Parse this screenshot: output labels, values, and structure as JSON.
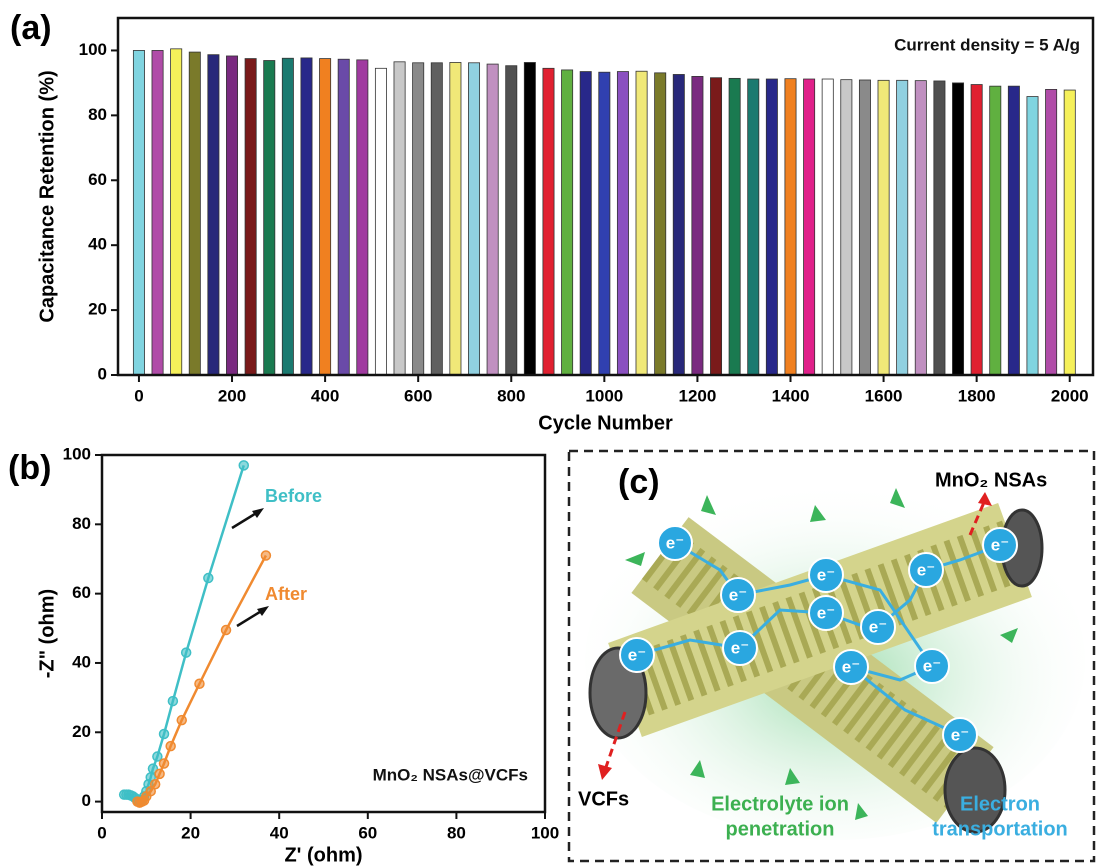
{
  "chart_data": [
    {
      "type": "bar",
      "panel_label": "(a)",
      "xlabel": "Cycle Number",
      "ylabel": "Capacitance Retention (%)",
      "annotation": "Current density = 5 A/g",
      "x": [
        0,
        40,
        80,
        120,
        160,
        200,
        240,
        280,
        320,
        360,
        400,
        440,
        480,
        520,
        560,
        600,
        640,
        680,
        720,
        760,
        800,
        840,
        880,
        920,
        960,
        1000,
        1040,
        1080,
        1120,
        1160,
        1200,
        1240,
        1280,
        1320,
        1360,
        1400,
        1440,
        1480,
        1520,
        1560,
        1600,
        1640,
        1680,
        1720,
        1760,
        1800,
        1840,
        1880,
        1920,
        1960,
        2000
      ],
      "values": [
        100,
        100,
        100.5,
        99.5,
        98.7,
        98.3,
        97.5,
        96.9,
        97.6,
        97.7,
        97.5,
        97.3,
        97.1,
        94.5,
        96.5,
        96.2,
        96.2,
        96.3,
        96.2,
        95.8,
        95.3,
        96.3,
        94.5,
        94.0,
        93.5,
        93.3,
        93.5,
        93.6,
        93.1,
        92.6,
        92.0,
        91.6,
        91.4,
        91.2,
        91.2,
        91.3,
        91.2,
        91.2,
        91.0,
        90.9,
        90.8,
        90.8,
        90.7,
        90.6,
        90.0,
        89.5,
        89.0,
        89.0,
        85.8,
        88.0,
        87.8
      ],
      "colors": [
        "#80d4e0",
        "#b04ca8",
        "#f5f05a",
        "#7a7a2a",
        "#28287a",
        "#7a2a80",
        "#7a1a1a",
        "#1a7a50",
        "#1a7a70",
        "#28288a",
        "#f08020",
        "#6a4aa8",
        "#a03aa0",
        "#ffffff",
        "#c8c8c8",
        "#8a8a8a",
        "#606060",
        "#f0e878",
        "#90d0e0",
        "#c090c0",
        "#505050",
        "#000000",
        "#e02030",
        "#60b040",
        "#28288a",
        "#3040b0",
        "#8a50c0",
        "#f0e878",
        "#7a7a2a",
        "#28287a",
        "#7a2a80",
        "#7a1a1a",
        "#1a7a50",
        "#1a7a70",
        "#28288a",
        "#f08020",
        "#e0208a",
        "#ffffff",
        "#c8c8c8",
        "#8a8a8a",
        "#f0e878",
        "#90d0e0",
        "#c090c0",
        "#505050",
        "#000000",
        "#e02030",
        "#60b040",
        "#28288a",
        "#80d4e0",
        "#b04ca8",
        "#f5f05a"
      ],
      "xlim": [
        -45,
        2050
      ],
      "ylim": [
        0,
        110
      ],
      "xticks": [
        0,
        200,
        400,
        600,
        800,
        1000,
        1200,
        1400,
        1600,
        1800,
        2000
      ],
      "yticks": [
        0,
        20,
        40,
        60,
        80,
        100
      ]
    },
    {
      "type": "line",
      "panel_label": "(b)",
      "xlabel": "Z' (ohm)",
      "ylabel": "-Z\" (ohm)",
      "annotation": "MnO₂ NSAs@VCFs",
      "series": [
        {
          "name": "Before",
          "color": "#3fbfc6",
          "x": [
            5,
            5.5,
            6,
            6.5,
            7,
            7.5,
            8,
            8.5,
            9,
            9.5,
            10,
            10.5,
            11,
            11.5,
            12.5,
            14,
            16,
            19,
            24,
            32
          ],
          "values": [
            2,
            2,
            2,
            1.8,
            1.5,
            1,
            0.5,
            0.3,
            0.5,
            1.5,
            3,
            5,
            7,
            9.5,
            13,
            19.5,
            29,
            43,
            64.5,
            97
          ]
        },
        {
          "name": "After",
          "color": "#f08a30",
          "x": [
            8,
            8.5,
            9,
            9.5,
            10,
            11,
            12,
            13,
            14,
            15.5,
            18,
            22,
            28,
            37
          ],
          "values": [
            0,
            -0.3,
            0,
            0.3,
            1.5,
            3,
            5,
            8,
            11,
            16,
            23.5,
            34,
            49.5,
            71
          ]
        }
      ],
      "xlim": [
        0,
        100
      ],
      "ylim": [
        -3,
        100
      ],
      "xticks": [
        0,
        20,
        40,
        60,
        80,
        100
      ],
      "yticks": [
        0,
        20,
        40,
        60,
        80,
        100
      ]
    }
  ],
  "diagram": {
    "panel_label": "(c)",
    "nsas": "MnO₂ NSAs",
    "vcfs": "VCFs",
    "electron": "e⁻",
    "electrolyte": [
      "Electrolyte ion",
      "penetration"
    ],
    "transport": [
      "Electron",
      "transportation"
    ]
  }
}
